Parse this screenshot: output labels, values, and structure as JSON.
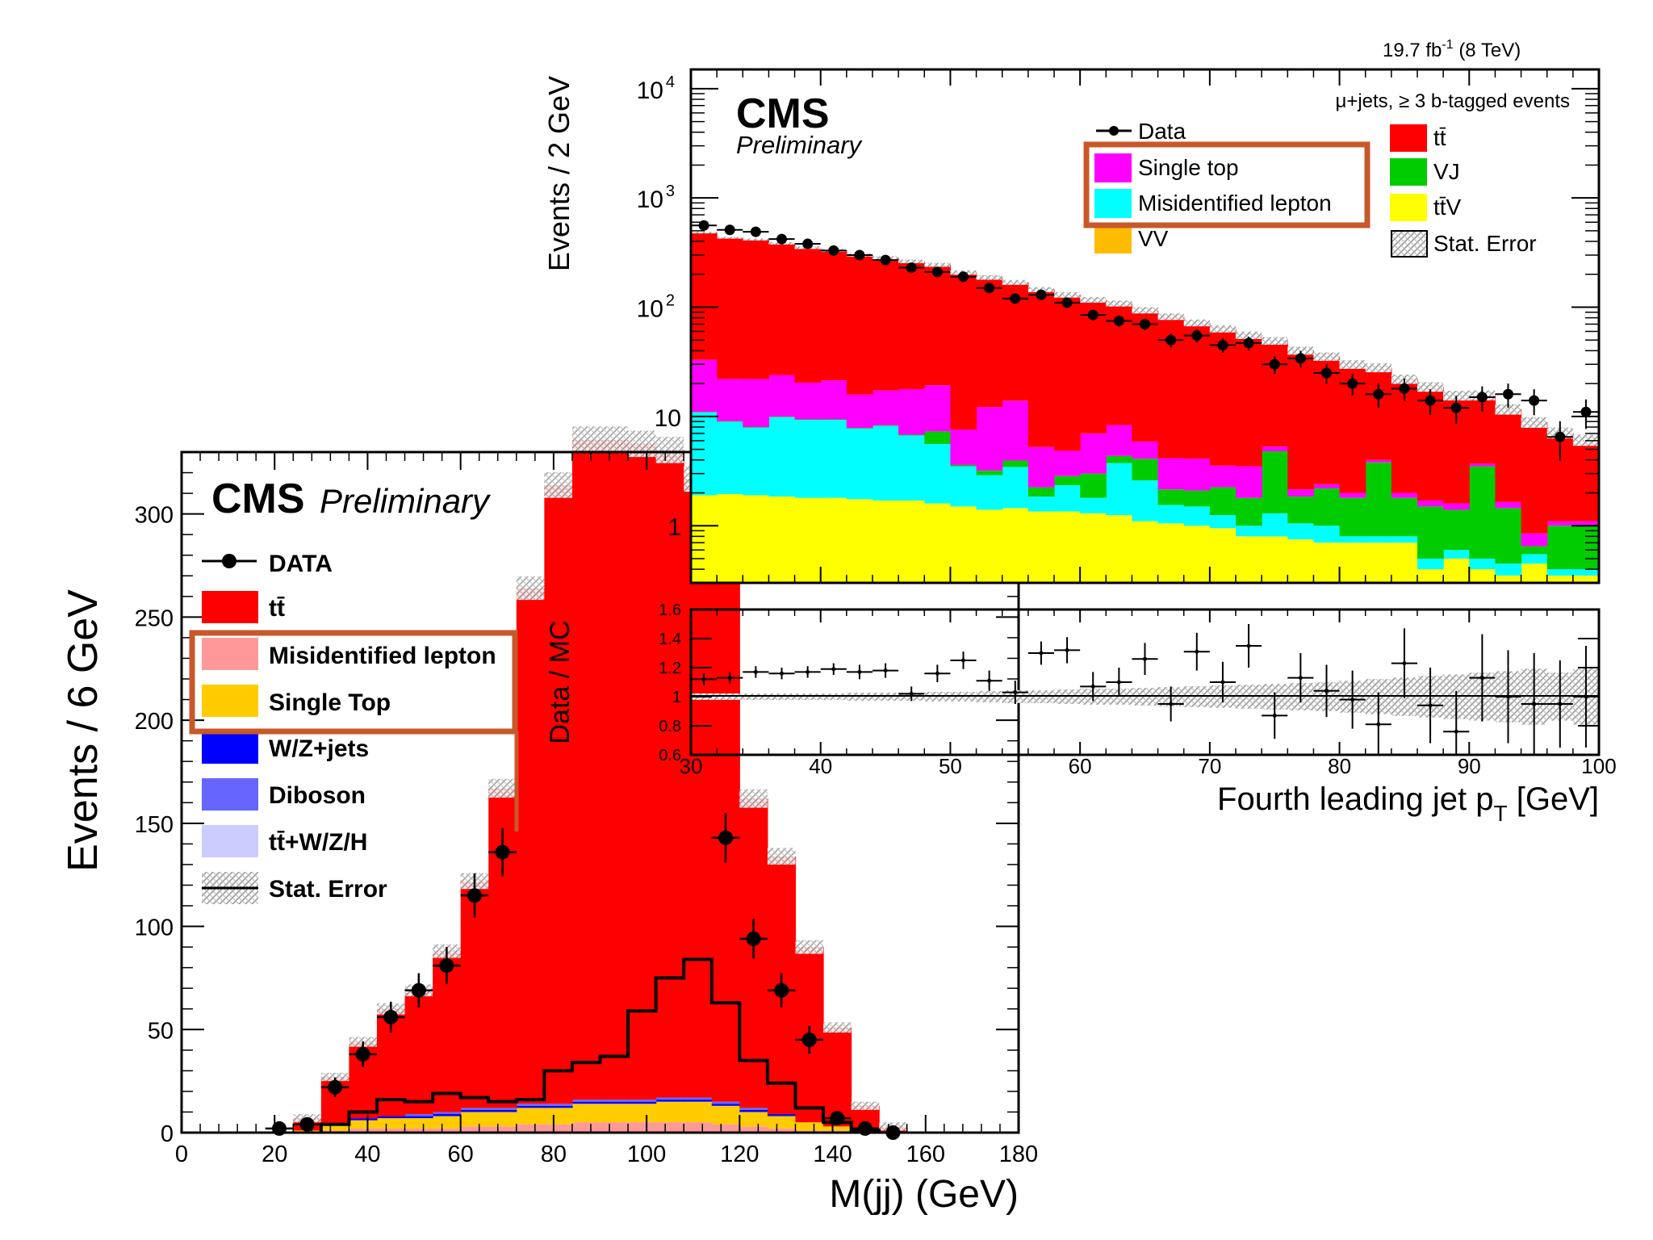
{
  "colors": {
    "ttbar": "#ff0000",
    "misid_lepton_A": "#ff9999",
    "single_top_A": "#ffcc00",
    "wz_jets": "#0000ff",
    "diboson": "#6666ff",
    "ttwzh": "#ccccff",
    "single_top_B": "#ff00ff",
    "misid_lepton_B": "#00ffff",
    "vj": "#00cc00",
    "ttv": "#ffff00",
    "vv": "#ffbb00",
    "highlight": "#c8582a",
    "data": "#000000"
  },
  "chart_data": [
    {
      "id": "mjj",
      "type": "bar",
      "subtype": "stacked-histogram",
      "experiment_label": "CMS",
      "status_label": "Preliminary",
      "xlabel": "M(jj) (GeV)",
      "ylabel": "Events / 6 GeV",
      "xlim": [
        0,
        180
      ],
      "ylim": [
        0,
        330
      ],
      "x_ticks": [
        "0",
        "20",
        "40",
        "60",
        "80",
        "100",
        "120",
        "140",
        "160",
        "180"
      ],
      "y_ticks": [
        "0",
        "50",
        "100",
        "150",
        "200",
        "250",
        "300"
      ],
      "bin_edges": [
        24,
        30,
        36,
        42,
        48,
        54,
        60,
        66,
        72,
        78,
        84,
        90,
        96,
        102,
        108,
        114,
        120,
        126,
        132,
        138,
        144,
        150,
        156
      ],
      "stack": [
        {
          "name": "tt̄",
          "color": "#ff0000",
          "values": [
            6,
            23,
            37,
            52,
            60,
            78,
            110,
            155,
            250,
            300,
            320,
            320,
            318,
            314,
            300,
            275,
            150,
            125,
            85,
            48,
            12,
            3
          ]
        },
        {
          "name": "Misidentified lepton",
          "color": "#ff9999",
          "values": [
            0,
            1,
            2,
            2,
            2,
            2,
            3,
            3,
            4,
            4,
            5,
            5,
            5,
            5,
            5,
            4,
            3,
            2,
            1,
            1,
            0,
            0
          ]
        },
        {
          "name": "Single Top",
          "color": "#ffcc00",
          "values": [
            1,
            3,
            4,
            5,
            5,
            6,
            7,
            7,
            8,
            8,
            9,
            9,
            9,
            10,
            10,
            9,
            7,
            6,
            4,
            2,
            1,
            0
          ]
        },
        {
          "name": "W/Z+jets",
          "color": "#0000ff",
          "values": [
            0,
            0,
            1,
            1,
            1,
            1,
            1,
            1,
            1,
            1,
            1,
            1,
            1,
            1,
            1,
            1,
            1,
            1,
            0,
            0,
            0,
            0
          ]
        },
        {
          "name": "Diboson",
          "color": "#6666ff",
          "values": [
            0,
            0,
            0,
            0,
            1,
            1,
            1,
            1,
            1,
            1,
            1,
            1,
            1,
            1,
            1,
            1,
            1,
            0,
            0,
            0,
            0,
            0
          ]
        },
        {
          "name": "tt̄+W/Z/H",
          "color": "#ccccff",
          "values": [
            0,
            0,
            0,
            0,
            0,
            0,
            0,
            0,
            0,
            0,
            0,
            0,
            0,
            0,
            0,
            0,
            0,
            0,
            0,
            0,
            0,
            0
          ]
        }
      ],
      "stat_error_label": "Stat. Error",
      "data_label": "DATA",
      "data_points": {
        "x": [
          21,
          27,
          33,
          39,
          45,
          51,
          57,
          63,
          69,
          117,
          123,
          129,
          135,
          141,
          147,
          153
        ],
        "y": [
          2,
          4,
          22,
          38,
          56,
          69,
          81,
          115,
          136,
          143,
          94,
          69,
          45,
          7,
          2,
          0
        ]
      },
      "signal_line": {
        "bin_edges": [
          30,
          36,
          42,
          48,
          54,
          60,
          66,
          72,
          78,
          84,
          90,
          96,
          102,
          108,
          114,
          120,
          126,
          132,
          138,
          144,
          150
        ],
        "values": [
          4,
          10,
          16,
          15,
          19,
          17,
          15,
          16,
          30,
          34,
          37,
          59,
          75,
          84,
          63,
          35,
          24,
          12,
          5,
          1
        ]
      },
      "legend": [
        "DATA",
        "tt̄",
        "Misidentified lepton",
        "Single Top",
        "W/Z+jets",
        "Diboson",
        "tt̄+W/Z/H",
        "Stat. Error"
      ],
      "highlight_legend_entries": [
        "Misidentified lepton",
        "Single Top"
      ]
    },
    {
      "id": "jet4pt",
      "type": "bar",
      "subtype": "stacked-histogram-log",
      "experiment_label": "CMS",
      "status_label": "Preliminary",
      "lumi_label": "19.7 fb",
      "lumi_exponent": "-1",
      "energy_label": "(8 TeV)",
      "selection_label": "μ+jets,  ≥ 3 b-tagged events",
      "xlabel": "Fourth leading jet p",
      "xlabel_sub": "T",
      "xlabel_unit": "[GeV]",
      "ylabel": "Events / 2 GeV",
      "y_scale": "log",
      "xlim": [
        30,
        100
      ],
      "ylim": [
        0.3,
        15000
      ],
      "x_ticks": [
        "30",
        "40",
        "50",
        "60",
        "70",
        "80",
        "90",
        "100"
      ],
      "y_ticks": [
        {
          "base": "10",
          "exp": "4",
          "value": 10000
        },
        {
          "base": "10",
          "exp": "3",
          "value": 1000
        },
        {
          "base": "10",
          "exp": "2",
          "value": 100
        },
        {
          "base": "10",
          "exp": "",
          "value": 10
        },
        {
          "base": "1",
          "exp": "",
          "value": 1
        }
      ],
      "bin_edges": [
        30,
        32,
        34,
        36,
        38,
        40,
        42,
        44,
        46,
        48,
        50,
        52,
        54,
        56,
        58,
        60,
        62,
        64,
        66,
        68,
        70,
        72,
        74,
        76,
        78,
        80,
        82,
        84,
        86,
        88,
        90,
        92,
        94,
        96,
        98,
        100
      ],
      "stack": [
        {
          "name": "tt̄V",
          "color": "#ffff00",
          "values": [
            1.9,
            1.95,
            1.9,
            1.85,
            1.8,
            1.8,
            1.75,
            1.7,
            1.7,
            1.6,
            1.5,
            1.4,
            1.45,
            1.35,
            1.35,
            1.3,
            1.25,
            1.1,
            1.05,
            1.0,
            0.95,
            0.8,
            0.8,
            0.75,
            0.7,
            0.7,
            0.7,
            0.7,
            0.4,
            0.5,
            0.4,
            0.35,
            0.45,
            0.35,
            0.35
          ]
        },
        {
          "name": "VV",
          "color": "#ffbb00",
          "values": [
            0,
            0,
            0,
            0,
            0,
            0,
            0,
            0,
            0,
            0,
            0,
            0,
            0,
            0,
            0,
            0,
            0,
            0,
            0,
            0,
            0,
            0,
            0,
            0,
            0,
            0,
            0,
            0,
            0,
            0,
            0,
            0,
            0,
            0,
            0
          ]
        },
        {
          "name": "Misidentified lepton",
          "color": "#00ffff",
          "values": [
            9,
            7,
            6,
            8,
            7.5,
            7.5,
            6,
            6.5,
            5,
            4,
            2,
            1.5,
            2,
            0.5,
            1,
            0.5,
            2.5,
            1.5,
            0.5,
            0.5,
            0.3,
            0.2,
            0.5,
            0.3,
            0.3,
            0.1,
            0.1,
            0.1,
            0.1,
            0.1,
            0.1,
            0.1,
            0.1,
            0.05,
            0.05
          ]
        },
        {
          "name": "VJ",
          "color": "#00cc00",
          "values": [
            0.1,
            0.1,
            0.1,
            0.1,
            0.1,
            0.1,
            0.1,
            0.1,
            0.1,
            1.7,
            0.1,
            0.3,
            0.5,
            0.4,
            0.5,
            1.2,
            0.6,
            1.5,
            0.6,
            0.6,
            1.0,
            0.8,
            3.5,
            0.8,
            1.2,
            1.0,
            3.0,
            1.0,
            1.0,
            0.8,
            3.0,
            1.0,
            0.1,
            0.6,
            0.6
          ]
        },
        {
          "name": "Single top",
          "color": "#ff00ff",
          "values": [
            22,
            13,
            14,
            14,
            11,
            12,
            8,
            9,
            11,
            12,
            4,
            9,
            10,
            3,
            2,
            4,
            4,
            1.8,
            2,
            2,
            1.3,
            1.7,
            0.5,
            0.3,
            0.2,
            0.2,
            0.2,
            0.2,
            0.2,
            0.2,
            0.2,
            0.2,
            0.2,
            0.1,
            0.1
          ]
        },
        {
          "name": "tt̄",
          "color": "#ff0000",
          "values": [
            450,
            410,
            395,
            360,
            330,
            310,
            285,
            265,
            245,
            225,
            200,
            175,
            155,
            140,
            125,
            110,
            100,
            88,
            78,
            68,
            60,
            52,
            44,
            38,
            33,
            28,
            24,
            20,
            17,
            14,
            12,
            10,
            8,
            6,
            5
          ]
        }
      ],
      "stat_error_label": "Stat. Error",
      "data_label": "Data",
      "data_points": {
        "x": [
          31,
          33,
          35,
          37,
          39,
          41,
          43,
          45,
          47,
          49,
          51,
          53,
          55,
          57,
          59,
          61,
          63,
          65,
          67,
          69,
          71,
          73,
          75,
          77,
          79,
          81,
          83,
          85,
          87,
          89,
          91,
          93,
          95,
          97,
          99
        ],
        "y": [
          560,
          510,
          490,
          420,
          380,
          330,
          300,
          270,
          230,
          210,
          190,
          150,
          120,
          130,
          110,
          85,
          75,
          70,
          50,
          55,
          45,
          47,
          30,
          34,
          25,
          20,
          16,
          18,
          14,
          12,
          15,
          16,
          14,
          6.5,
          11
        ]
      },
      "legend": [
        "Data",
        "Single top",
        "Misidentified lepton",
        "VV",
        "tt̄",
        "VJ",
        "tt̄V",
        "Stat. Error"
      ],
      "highlight_legend_entries": [
        "Single top",
        "Misidentified lepton"
      ]
    },
    {
      "id": "ratio",
      "type": "scatter",
      "subtype": "ratio",
      "ylabel": "Data / MC",
      "xlim": [
        30,
        100
      ],
      "ylim": [
        0.6,
        1.6
      ],
      "y_ticks": [
        "0.6",
        "0.8",
        "1",
        "1.2",
        "1.4",
        "1.6"
      ],
      "x": [
        31,
        33,
        35,
        37,
        39,
        41,
        43,
        45,
        47,
        49,
        51,
        53,
        55,
        57,
        59,
        61,
        63,
        65,
        67,
        69,
        71,
        73,
        75,
        77,
        79,
        81,
        83,
        85,
        87,
        89,
        91,
        93,
        95,
        97,
        99
      ],
      "y": [
        1.12,
        1.13,
        1.17,
        1.16,
        1.17,
        1.19,
        1.17,
        1.18,
        1.02,
        1.16,
        1.25,
        1.11,
        1.03,
        1.3,
        1.32,
        1.07,
        1.1,
        1.26,
        0.95,
        1.31,
        1.1,
        1.35,
        0.87,
        1.13,
        1.04,
        0.98,
        0.81,
        1.23,
        0.94,
        0.76,
        1.13,
        1.0,
        0.95,
        0.95,
        1.0
      ],
      "err": [
        0.04,
        0.04,
        0.04,
        0.04,
        0.04,
        0.04,
        0.05,
        0.05,
        0.05,
        0.06,
        0.06,
        0.07,
        0.08,
        0.08,
        0.09,
        0.1,
        0.1,
        0.11,
        0.12,
        0.13,
        0.14,
        0.15,
        0.16,
        0.17,
        0.18,
        0.2,
        0.22,
        0.24,
        0.26,
        0.28,
        0.3,
        0.32,
        0.35,
        0.3,
        0.35
      ],
      "plot_points": 30
    }
  ]
}
